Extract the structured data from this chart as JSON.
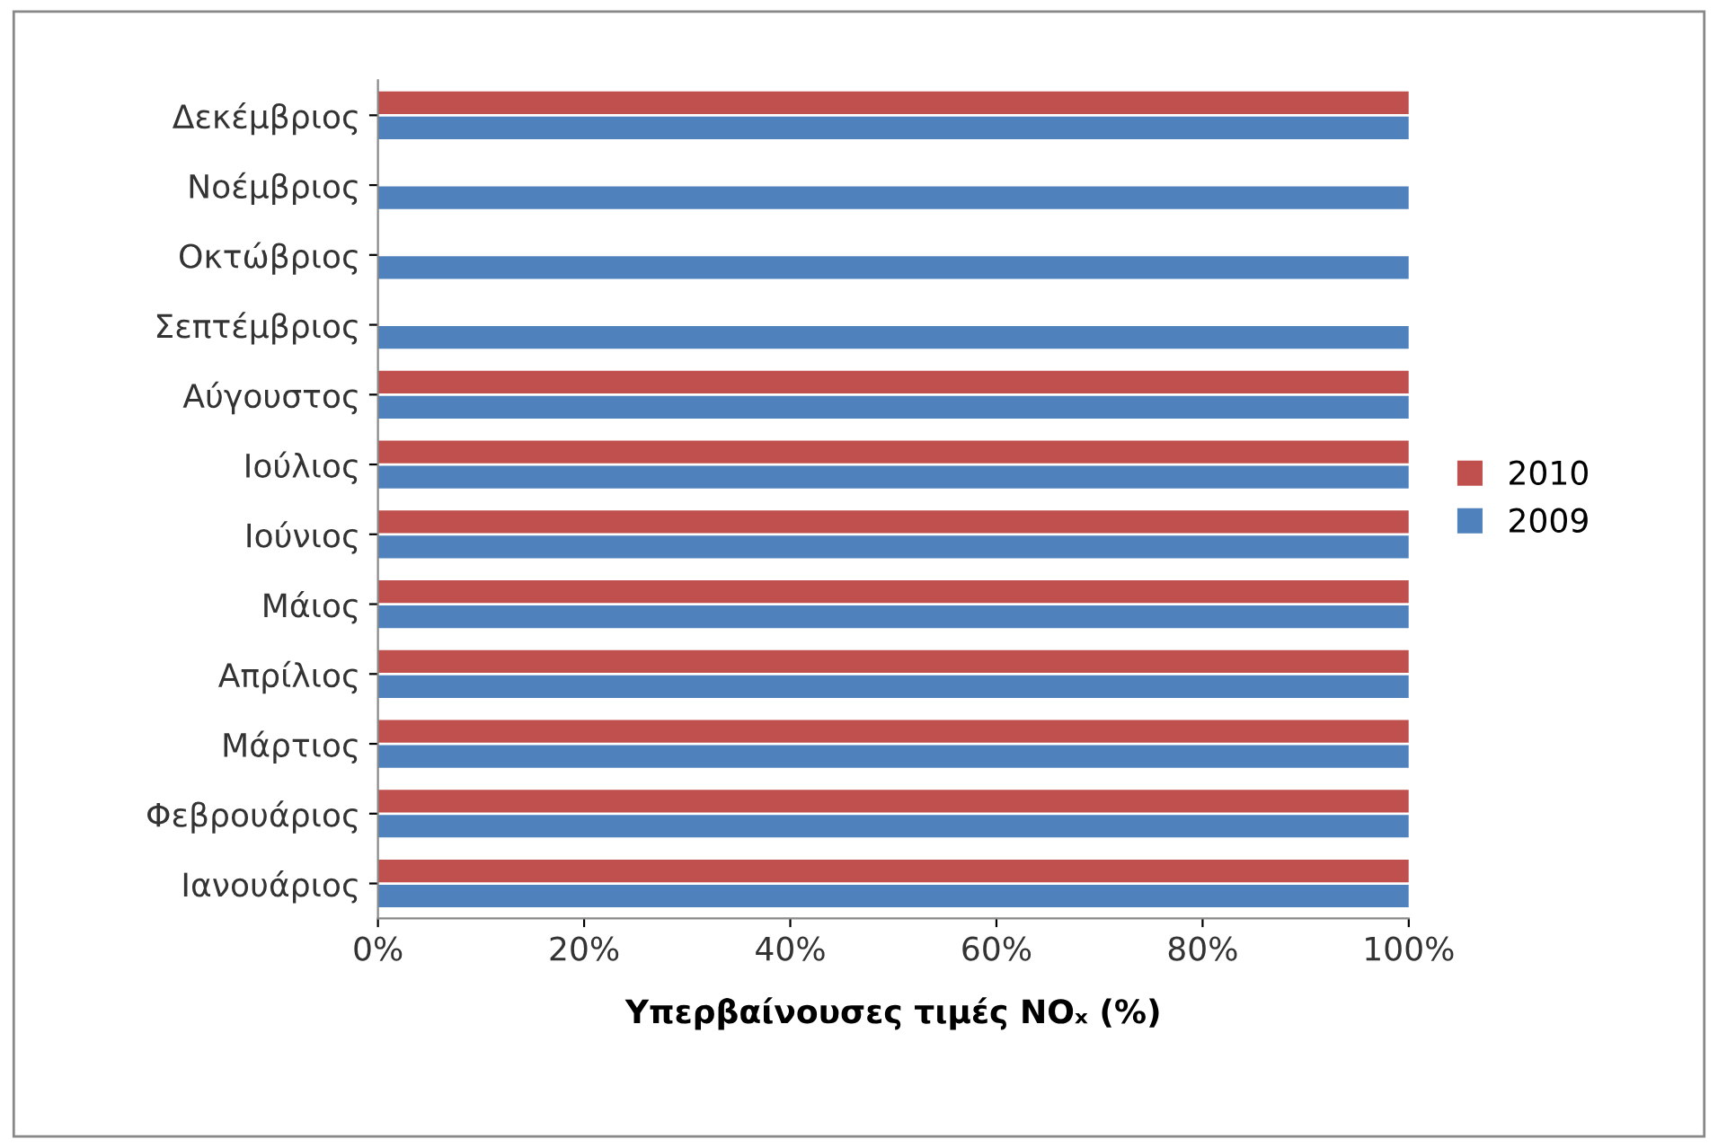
{
  "chart_data": {
    "type": "bar",
    "orientation": "horizontal",
    "xlabel": "Υπερβαίνουσες τιμές NOₓ (%)",
    "categories": [
      "Δεκέμβριος",
      "Νοέμβριος",
      "Οκτώβριος",
      "Σεπτέμβριος",
      "Αύγουστος",
      "Ιούλιος",
      "Ιούνιος",
      "Μάιος",
      "Απρίλιος",
      "Μάρτιος",
      "Φεβρουάριος",
      "Ιανουάριος"
    ],
    "series": [
      {
        "name": "2010",
        "color": "#c0504d",
        "values": [
          100,
          null,
          null,
          null,
          100,
          100,
          100,
          100,
          100,
          100,
          100,
          100
        ]
      },
      {
        "name": "2009",
        "color": "#4f81bd",
        "values": [
          100,
          100,
          100,
          100,
          100,
          100,
          100,
          100,
          100,
          100,
          100,
          100
        ]
      }
    ],
    "xlim": [
      0,
      100
    ],
    "xticks": [
      {
        "value": 0,
        "label": "0%"
      },
      {
        "value": 20,
        "label": "20%"
      },
      {
        "value": 40,
        "label": "40%"
      },
      {
        "value": 60,
        "label": "60%"
      },
      {
        "value": 80,
        "label": "80%"
      },
      {
        "value": 100,
        "label": "100%"
      }
    ],
    "grid": false,
    "legend": "right"
  }
}
